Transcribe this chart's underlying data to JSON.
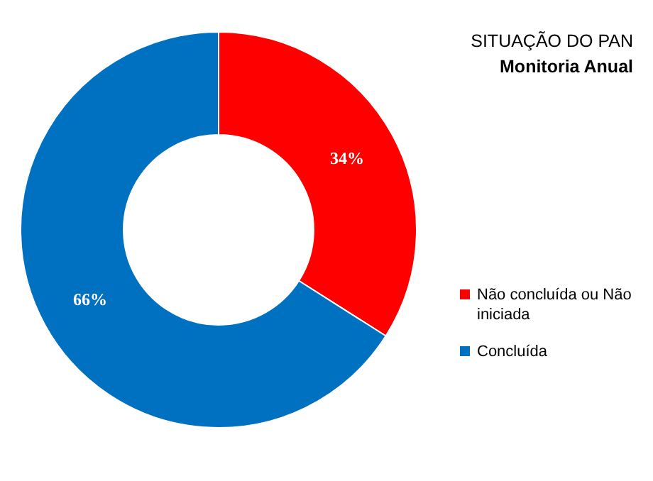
{
  "chart_data": {
    "type": "donut",
    "title": "SITUAÇÃO DO PAN",
    "subtitle": "Monitoria Anual",
    "categories": [
      "Não concluída ou Não iniciada",
      "Concluída"
    ],
    "values": [
      34,
      66
    ],
    "colors": [
      "#ff0000",
      "#0070c0"
    ],
    "value_labels": [
      "34%",
      "66%"
    ],
    "legend": "right"
  }
}
